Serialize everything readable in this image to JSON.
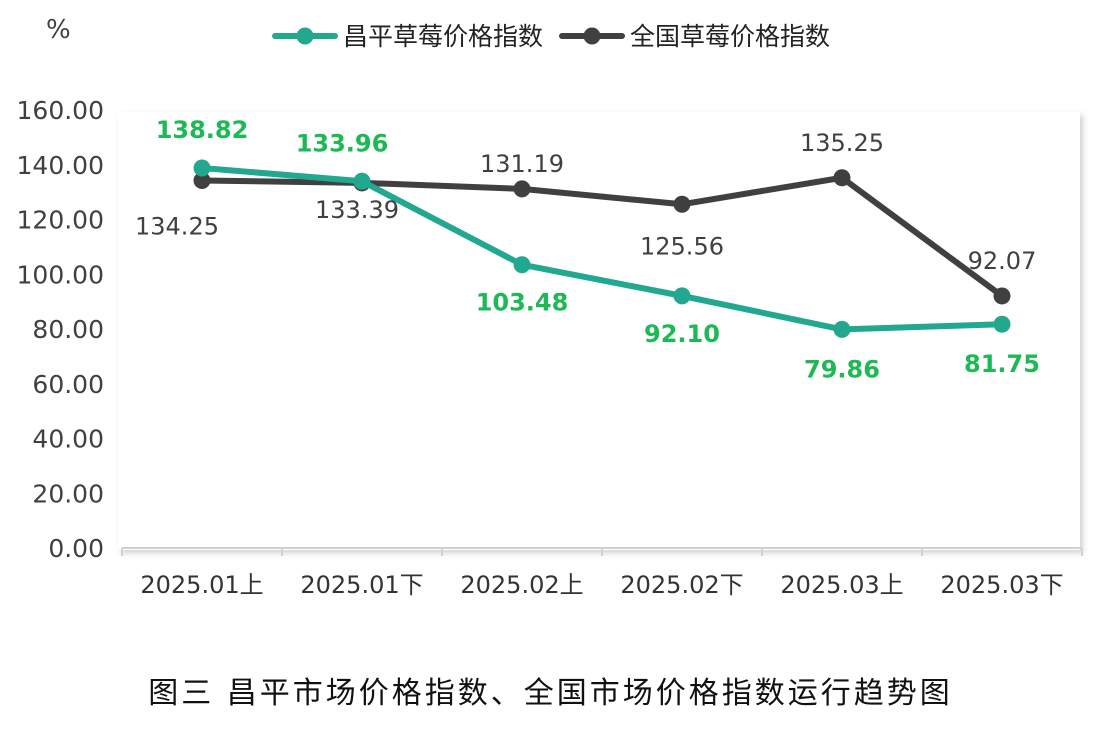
{
  "chart_data": {
    "type": "line",
    "unit_label": "%",
    "categories": [
      "2025.01上",
      "2025.01下",
      "2025.02上",
      "2025.02下",
      "2025.03上",
      "2025.03下"
    ],
    "ylim": [
      0,
      160
    ],
    "yticks": [
      0,
      20,
      40,
      60,
      80,
      100,
      120,
      140,
      160
    ],
    "ytick_labels": [
      "0.00",
      "20.00",
      "40.00",
      "60.00",
      "80.00",
      "100.00",
      "120.00",
      "140.00",
      "160.00"
    ],
    "grid": false,
    "legend_position": "top",
    "series": [
      {
        "name": "昌平草莓价格指数",
        "color": "#22a88f",
        "label_color": "#1db954",
        "values": [
          138.82,
          133.96,
          103.48,
          92.1,
          79.86,
          81.75
        ],
        "labels": [
          "138.82",
          "133.96",
          "103.48",
          "92.10",
          "79.86",
          "81.75"
        ]
      },
      {
        "name": "全国草莓价格指数",
        "color": "#404040",
        "label_color": "#404040",
        "values": [
          134.25,
          133.39,
          131.19,
          125.56,
          135.25,
          92.07
        ],
        "labels": [
          "134.25",
          "133.39",
          "131.19",
          "125.56",
          "135.25",
          "92.07"
        ]
      }
    ]
  },
  "caption": "图三  昌平市场价格指数、全国市场价格指数运行趋势图"
}
